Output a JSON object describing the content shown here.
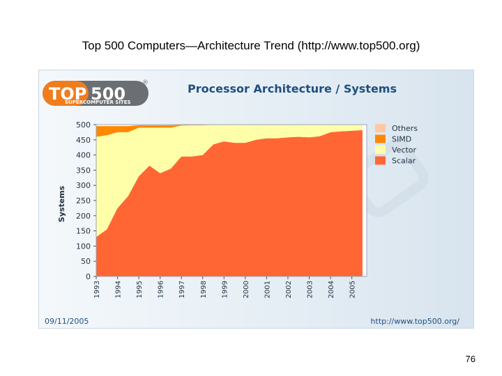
{
  "slide": {
    "title": "Top 500 Computers—Architecture Trend (http://www.top500.org)",
    "page_number": "76"
  },
  "logo": {
    "name_part1": "TOP",
    "name_part2": "500",
    "registered_mark": "®",
    "subtitle": "SUPERCOMPUTER SITES"
  },
  "footer": {
    "date": "09/11/2005",
    "url": "http://www.top500.org/"
  },
  "colors": {
    "scalar": "#ff6633",
    "vector": "#ffffaa",
    "simd": "#ff8800",
    "others": "#ffc8a0",
    "title_blue": "#1f4f7f",
    "logo_orange": "#f07c1e",
    "logo_grey": "#6b6e73"
  },
  "chart_data": {
    "type": "area",
    "stacked": true,
    "title": "Processor Architecture / Systems",
    "xlabel": "",
    "ylabel": "Systems",
    "ylim": [
      0,
      500
    ],
    "yticks": [
      0,
      50,
      100,
      150,
      200,
      250,
      300,
      350,
      400,
      450,
      500
    ],
    "ytick_labels": [
      "0",
      "50",
      "100",
      "150",
      "200",
      "250",
      "300",
      "350",
      "400",
      "450",
      "500"
    ],
    "xlim": [
      1993.0,
      2005.7
    ],
    "xticks": [
      1993,
      1994,
      1995,
      1996,
      1997,
      1998,
      1999,
      2000,
      2001,
      2002,
      2003,
      2004,
      2005
    ],
    "xtick_labels": [
      "1993",
      "1994",
      "1995",
      "1996",
      "1997",
      "1998",
      "1999",
      "2000",
      "2001",
      "2002",
      "2003",
      "2004",
      "2005"
    ],
    "legend_position": "right",
    "x": [
      1993.0,
      1993.5,
      1994.0,
      1994.5,
      1995.0,
      1995.5,
      1996.0,
      1996.5,
      1997.0,
      1997.5,
      1998.0,
      1998.5,
      1999.0,
      1999.5,
      2000.0,
      2000.5,
      2001.0,
      2001.5,
      2002.0,
      2002.5,
      2003.0,
      2003.5,
      2004.0,
      2004.5,
      2005.0,
      2005.5
    ],
    "series": [
      {
        "name": "Scalar",
        "color_key": "scalar",
        "values": [
          130,
          155,
          225,
          265,
          330,
          365,
          340,
          355,
          395,
          395,
          400,
          435,
          445,
          440,
          440,
          450,
          455,
          455,
          458,
          460,
          458,
          462,
          475,
          478,
          480,
          482
        ]
      },
      {
        "name": "Vector",
        "color_key": "vector",
        "values": [
          330,
          310,
          250,
          210,
          160,
          125,
          150,
          135,
          102,
          103,
          98,
          64,
          54,
          59,
          59,
          49,
          44,
          44,
          41,
          39,
          41,
          37,
          24,
          21,
          19,
          17
        ]
      },
      {
        "name": "SIMD",
        "color_key": "simd",
        "values": [
          35,
          30,
          20,
          20,
          8,
          8,
          8,
          8,
          2,
          1,
          1,
          1,
          1,
          1,
          1,
          1,
          1,
          1,
          1,
          1,
          1,
          1,
          1,
          1,
          1,
          1
        ]
      },
      {
        "name": "Others",
        "color_key": "others",
        "values": [
          0,
          0,
          0,
          0,
          0,
          0,
          0,
          0,
          0,
          0,
          0,
          0,
          0,
          0,
          0,
          0,
          0,
          0,
          0,
          0,
          0,
          0,
          0,
          0,
          0,
          0
        ]
      }
    ],
    "legend_order": [
      "Others",
      "SIMD",
      "Vector",
      "Scalar"
    ]
  }
}
